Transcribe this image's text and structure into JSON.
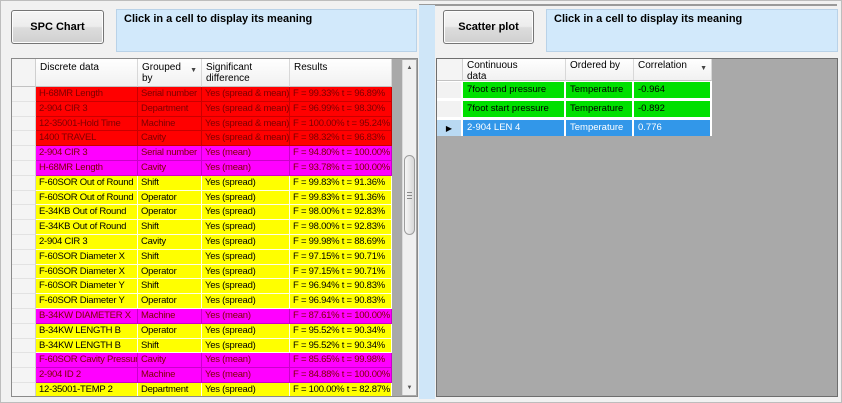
{
  "left_panel": {
    "button_label": "SPC Chart",
    "instruction": "Click in a cell to display its meaning",
    "grid": {
      "columns": [
        {
          "label": "Discrete data",
          "sort_icon": false
        },
        {
          "label": "Grouped by",
          "sort_icon": true
        },
        {
          "label": "Significant\ndifference",
          "sort_icon": false
        },
        {
          "label": "Results",
          "sort_icon": false
        }
      ],
      "rows": [
        {
          "discrete_data": "H-68MR Length",
          "grouped_by": "Serial number",
          "significant_difference": "Yes (spread & mean)",
          "results": "F = 99.33% t = 96.89%",
          "color": "red"
        },
        {
          "discrete_data": "2-904 CIR 3",
          "grouped_by": "Department",
          "significant_difference": "Yes (spread & mean)",
          "results": "F = 96.99% t = 98.30%",
          "color": "red"
        },
        {
          "discrete_data": "12-35001-Hold Time",
          "grouped_by": "Machine",
          "significant_difference": "Yes (spread & mean)",
          "results": "F = 100.00% t = 95.24%",
          "color": "red"
        },
        {
          "discrete_data": "1400 TRAVEL",
          "grouped_by": "Cavity",
          "significant_difference": "Yes (spread & mean)",
          "results": "F = 98.32% t = 96.83%",
          "color": "red"
        },
        {
          "discrete_data": "2-904 CIR 3",
          "grouped_by": "Serial number",
          "significant_difference": "Yes (mean)",
          "results": "F = 94.80% t = 100.00%",
          "color": "magenta"
        },
        {
          "discrete_data": "H-68MR Length",
          "grouped_by": "Cavity",
          "significant_difference": "Yes (mean)",
          "results": "F = 93.78% t = 100.00%",
          "color": "magenta"
        },
        {
          "discrete_data": "F-60SOR Out of Round",
          "grouped_by": "Shift",
          "significant_difference": "Yes (spread)",
          "results": "F = 99.83% t = 91.36%",
          "color": "yellow"
        },
        {
          "discrete_data": "F-60SOR Out of Round",
          "grouped_by": "Operator",
          "significant_difference": "Yes (spread)",
          "results": "F = 99.83% t = 91.36%",
          "color": "yellow"
        },
        {
          "discrete_data": "E-34KB Out of Round",
          "grouped_by": "Operator",
          "significant_difference": "Yes (spread)",
          "results": "F = 98.00% t = 92.83%",
          "color": "yellow"
        },
        {
          "discrete_data": "E-34KB Out of Round",
          "grouped_by": "Shift",
          "significant_difference": "Yes (spread)",
          "results": "F = 98.00% t = 92.83%",
          "color": "yellow"
        },
        {
          "discrete_data": "2-904 CIR 3",
          "grouped_by": "Cavity",
          "significant_difference": "Yes (spread)",
          "results": "F = 99.98% t = 88.69%",
          "color": "yellow"
        },
        {
          "discrete_data": "F-60SOR Diameter X",
          "grouped_by": "Shift",
          "significant_difference": "Yes (spread)",
          "results": "F = 97.15% t = 90.71%",
          "color": "yellow"
        },
        {
          "discrete_data": "F-60SOR Diameter X",
          "grouped_by": "Operator",
          "significant_difference": "Yes (spread)",
          "results": "F = 97.15% t = 90.71%",
          "color": "yellow"
        },
        {
          "discrete_data": "F-60SOR Diameter Y",
          "grouped_by": "Shift",
          "significant_difference": "Yes (spread)",
          "results": "F = 96.94% t = 90.83%",
          "color": "yellow"
        },
        {
          "discrete_data": "F-60SOR Diameter Y",
          "grouped_by": "Operator",
          "significant_difference": "Yes (spread)",
          "results": "F = 96.94% t = 90.83%",
          "color": "yellow"
        },
        {
          "discrete_data": "B-34KW DIAMETER X",
          "grouped_by": "Machine",
          "significant_difference": "Yes (mean)",
          "results": "F = 87.61% t = 100.00%",
          "color": "magenta"
        },
        {
          "discrete_data": "B-34KW LENGTH B",
          "grouped_by": "Operator",
          "significant_difference": "Yes (spread)",
          "results": "F = 95.52% t = 90.34%",
          "color": "yellow"
        },
        {
          "discrete_data": "B-34KW LENGTH B",
          "grouped_by": "Shift",
          "significant_difference": "Yes (spread)",
          "results": "F = 95.52% t = 90.34%",
          "color": "yellow"
        },
        {
          "discrete_data": "F-60SOR Cavity Pressure",
          "grouped_by": "Cavity",
          "significant_difference": "Yes (mean)",
          "results": "F = 85.65% t = 99.98%",
          "color": "magenta"
        },
        {
          "discrete_data": "2-904 ID 2",
          "grouped_by": "Machine",
          "significant_difference": "Yes (mean)",
          "results": "F = 84.88% t = 100.00%",
          "color": "magenta"
        },
        {
          "discrete_data": "12-35001-TEMP 2",
          "grouped_by": "Department",
          "significant_difference": "Yes (spread)",
          "results": "F = 100.00% t = 82.87%",
          "color": "yellow"
        }
      ]
    }
  },
  "right_panel": {
    "button_label": "Scatter plot",
    "instruction": "Click in a cell to display its meaning",
    "grid": {
      "columns": [
        {
          "label": "Continuous\ndata",
          "sort_icon": false
        },
        {
          "label": "Ordered by",
          "sort_icon": false
        },
        {
          "label": "Correlation",
          "sort_icon": true
        }
      ],
      "rows": [
        {
          "continuous_data": "7foot end pressure",
          "ordered_by": "Temperature",
          "correlation": "-0.964",
          "color": "green",
          "selected": false
        },
        {
          "continuous_data": "7foot start pressure",
          "ordered_by": "Temperature",
          "correlation": "-0.892",
          "color": "green",
          "selected": false
        },
        {
          "continuous_data": "2-904 LEN 4",
          "ordered_by": "Temperature",
          "correlation": "0.776",
          "color": "selected",
          "selected": true
        }
      ]
    }
  },
  "icons": {
    "sort": "▼",
    "row_indicator": "▶",
    "scroll_up": "▲",
    "scroll_down": "▼"
  },
  "colors": {
    "red_row": "#ff0000",
    "magenta_row": "#ff00ff",
    "yellow_row": "#ffff00",
    "green_row": "#00e000",
    "selected_row": "#3297e9",
    "dark_row_text": "#7c0000",
    "instruction_bg": "#d2e9fb",
    "splitter": "#cfe6f8",
    "grid_empty_bg": "#a9a9a9"
  }
}
